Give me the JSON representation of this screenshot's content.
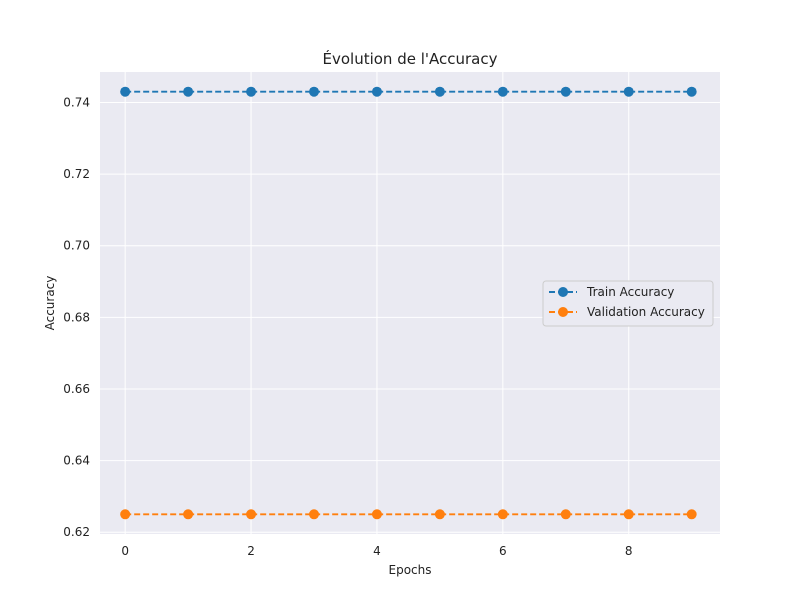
{
  "chart_data": {
    "type": "line",
    "title": "Évolution de l'Accuracy",
    "xlabel": "Epochs",
    "ylabel": "Accuracy",
    "x": [
      0,
      1,
      2,
      3,
      4,
      5,
      6,
      7,
      8,
      9
    ],
    "xlim": [
      -0.4,
      9.45
    ],
    "ylim": [
      0.6195,
      0.7485
    ],
    "xticks": [
      0,
      2,
      4,
      6,
      8
    ],
    "yticks": [
      0.62,
      0.64,
      0.66,
      0.68,
      0.7,
      0.72,
      0.74
    ],
    "ytick_labels": [
      "0.62",
      "0.64",
      "0.66",
      "0.68",
      "0.70",
      "0.72",
      "0.74"
    ],
    "grid": true,
    "legend_position": "center-right",
    "series": [
      {
        "name": "Train Accuracy",
        "values": [
          0.743,
          0.743,
          0.743,
          0.743,
          0.743,
          0.743,
          0.743,
          0.743,
          0.743,
          0.743
        ],
        "color": "#1f77b4",
        "linestyle": "dashed",
        "marker": "circle"
      },
      {
        "name": "Validation Accuracy",
        "values": [
          0.625,
          0.625,
          0.625,
          0.625,
          0.625,
          0.625,
          0.625,
          0.625,
          0.625,
          0.625
        ],
        "color": "#ff7f0e",
        "linestyle": "dashed",
        "marker": "circle"
      }
    ],
    "plot_background": "#eaeaf2",
    "grid_color": "#ffffff"
  }
}
